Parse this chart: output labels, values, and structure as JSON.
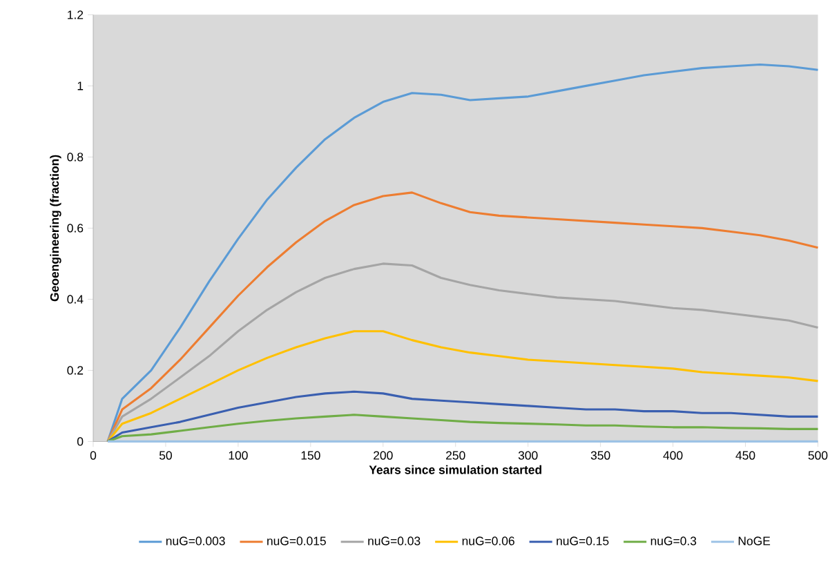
{
  "chart_data": {
    "type": "line",
    "xlabel": "Years since simulation started",
    "ylabel": "Geoengineering (fraction)",
    "x": [
      10,
      20,
      40,
      60,
      80,
      100,
      120,
      140,
      160,
      180,
      200,
      220,
      240,
      260,
      280,
      300,
      320,
      340,
      360,
      380,
      400,
      420,
      440,
      460,
      480,
      500
    ],
    "series": [
      {
        "name": "nuG=0.003",
        "color": "#5b9bd5",
        "values": [
          0,
          0.12,
          0.2,
          0.32,
          0.45,
          0.57,
          0.68,
          0.77,
          0.85,
          0.91,
          0.955,
          0.98,
          0.975,
          0.96,
          0.965,
          0.97,
          0.985,
          1.0,
          1.015,
          1.03,
          1.04,
          1.05,
          1.055,
          1.06,
          1.055,
          1.045
        ]
      },
      {
        "name": "nuG=0.015",
        "color": "#ed7d31",
        "values": [
          0,
          0.09,
          0.15,
          0.23,
          0.32,
          0.41,
          0.49,
          0.56,
          0.62,
          0.665,
          0.69,
          0.7,
          0.67,
          0.645,
          0.635,
          0.63,
          0.625,
          0.62,
          0.615,
          0.61,
          0.605,
          0.6,
          0.59,
          0.58,
          0.565,
          0.545
        ]
      },
      {
        "name": "nuG=0.03",
        "color": "#a5a5a5",
        "values": [
          0,
          0.07,
          0.12,
          0.18,
          0.24,
          0.31,
          0.37,
          0.42,
          0.46,
          0.485,
          0.5,
          0.495,
          0.46,
          0.44,
          0.425,
          0.415,
          0.405,
          0.4,
          0.395,
          0.385,
          0.375,
          0.37,
          0.36,
          0.35,
          0.34,
          0.32
        ]
      },
      {
        "name": "nuG=0.06",
        "color": "#ffc000",
        "values": [
          0,
          0.05,
          0.08,
          0.12,
          0.16,
          0.2,
          0.235,
          0.265,
          0.29,
          0.31,
          0.31,
          0.285,
          0.265,
          0.25,
          0.24,
          0.23,
          0.225,
          0.22,
          0.215,
          0.21,
          0.205,
          0.195,
          0.19,
          0.185,
          0.18,
          0.17
        ]
      },
      {
        "name": "nuG=0.15",
        "color": "#3a5fb0",
        "values": [
          0,
          0.025,
          0.04,
          0.055,
          0.075,
          0.095,
          0.11,
          0.125,
          0.135,
          0.14,
          0.135,
          0.12,
          0.115,
          0.11,
          0.105,
          0.1,
          0.095,
          0.09,
          0.09,
          0.085,
          0.085,
          0.08,
          0.08,
          0.075,
          0.07,
          0.07
        ]
      },
      {
        "name": "nuG=0.3",
        "color": "#70ad47",
        "values": [
          0,
          0.015,
          0.02,
          0.03,
          0.04,
          0.05,
          0.058,
          0.065,
          0.07,
          0.075,
          0.07,
          0.065,
          0.06,
          0.055,
          0.052,
          0.05,
          0.048,
          0.045,
          0.045,
          0.042,
          0.04,
          0.04,
          0.038,
          0.037,
          0.035,
          0.035
        ]
      },
      {
        "name": "NoGE",
        "color": "#9dc3e6",
        "values": [
          0,
          0,
          0,
          0,
          0,
          0,
          0,
          0,
          0,
          0,
          0,
          0,
          0,
          0,
          0,
          0,
          0,
          0,
          0,
          0,
          0,
          0,
          0,
          0,
          0,
          0
        ]
      }
    ],
    "xlim": [
      0,
      500
    ],
    "xticks": [
      0,
      50,
      100,
      150,
      200,
      250,
      300,
      350,
      400,
      450,
      500
    ],
    "ylim": [
      0,
      1.2
    ],
    "yticks": [
      0,
      0.2,
      0.4,
      0.6,
      0.8,
      1,
      1.2
    ],
    "legend": "bottom"
  }
}
